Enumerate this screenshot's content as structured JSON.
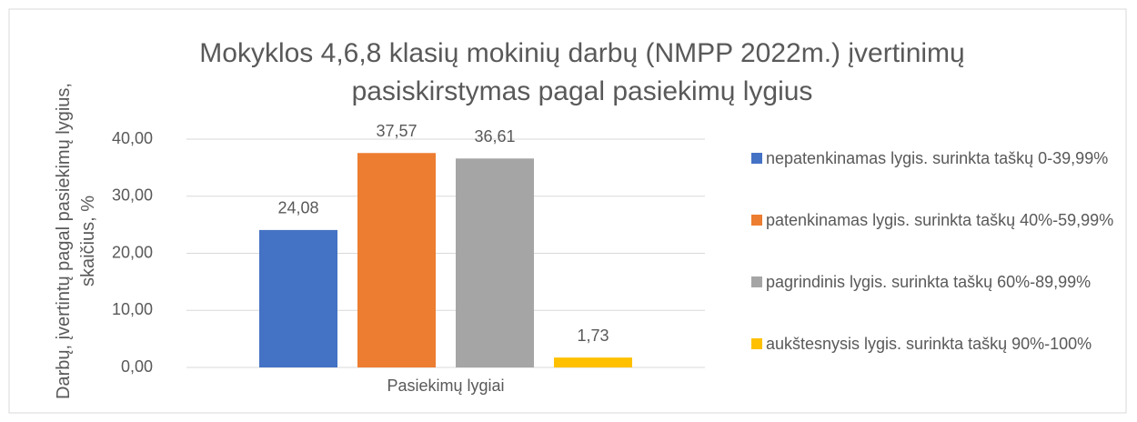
{
  "chart_data": {
    "type": "bar",
    "title": "Mokyklos 4,6,8 klasių mokinių darbų (NMPP 2022m.) įvertinimų pasiskirstymas pagal pasiekimų lygius",
    "y_label": "Darbų, įvertintų pagal pasiekimų lygius, skaičius, %",
    "categories": [
      "Pasiekimų lygiai"
    ],
    "series": [
      {
        "name": "nepatenkinamas lygis. surinkta taškų 0-39,99%",
        "color": "#4472c4",
        "values": [
          24.08
        ],
        "value_labels": [
          "24,08"
        ]
      },
      {
        "name": "patenkinamas lygis. surinkta taškų 40%-59,99%",
        "color": "#ed7d31",
        "values": [
          37.57
        ],
        "value_labels": [
          "37,57"
        ]
      },
      {
        "name": "pagrindinis lygis. surinkta taškų 60%-89,99%",
        "color": "#a5a5a5",
        "values": [
          36.61
        ],
        "value_labels": [
          "36,61"
        ]
      },
      {
        "name": "aukštesnysis lygis. surinkta taškų 90%-100%",
        "color": "#ffc000",
        "values": [
          1.73
        ],
        "value_labels": [
          "1,73"
        ]
      }
    ],
    "ylim": [
      0,
      40
    ],
    "yticks": [
      {
        "value": 0,
        "label": "0,00"
      },
      {
        "value": 10,
        "label": "10,00"
      },
      {
        "value": 20,
        "label": "20,00"
      },
      {
        "value": 30,
        "label": "30,00"
      },
      {
        "value": 40,
        "label": "40,00"
      }
    ],
    "grid": true,
    "legend": "right"
  }
}
